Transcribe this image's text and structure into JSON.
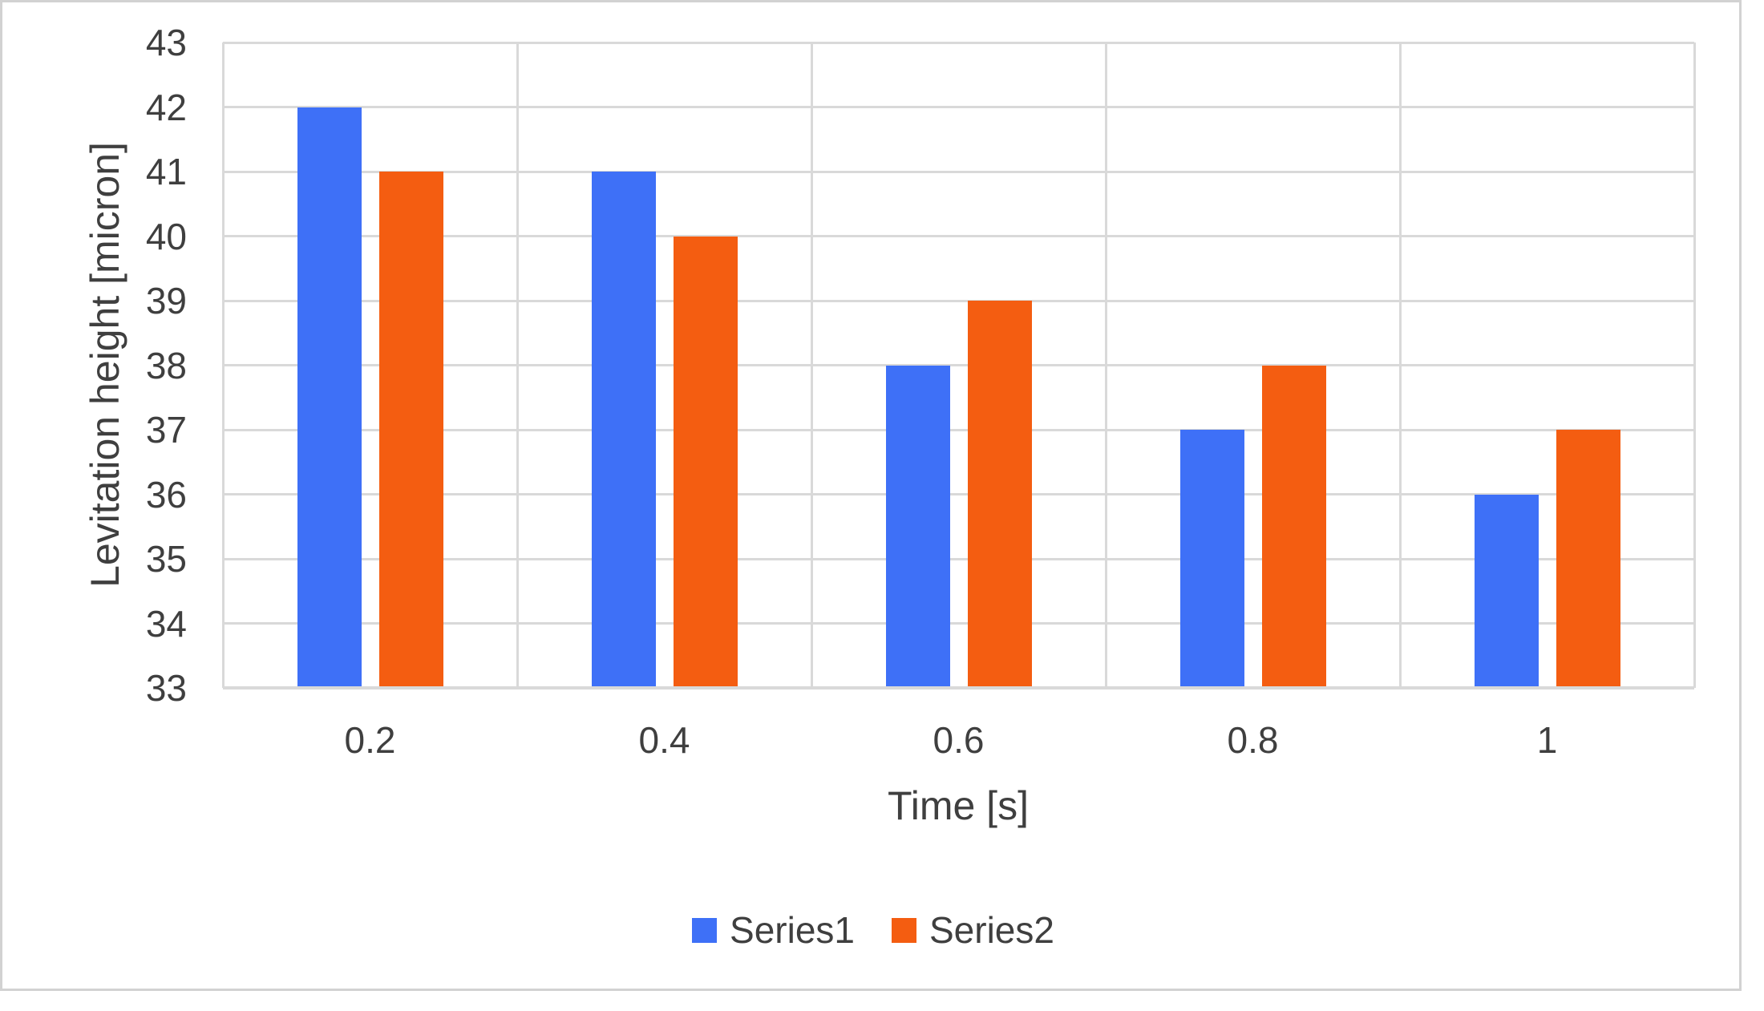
{
  "chart_data": {
    "type": "bar",
    "title": "",
    "categories": [
      "0.2",
      "0.4",
      "0.6",
      "0.8",
      "1"
    ],
    "series": [
      {
        "name": "Series1",
        "color": "#3e70f7",
        "values": [
          42,
          41,
          38,
          37,
          36
        ]
      },
      {
        "name": "Series2",
        "color": "#f45d11",
        "values": [
          41,
          40,
          39,
          38,
          37
        ]
      }
    ],
    "xlabel": "Time [s]",
    "ylabel": "Levitation height [micron]",
    "ylim": [
      33,
      43
    ],
    "yticks": [
      33,
      34,
      35,
      36,
      37,
      38,
      39,
      40,
      41,
      42,
      43
    ],
    "ytick_step": 1,
    "grid": "horizontal-major-and-vertical-category-separators",
    "legend_position": "bottom-center",
    "colors": {
      "gridline": "#d9d9d9",
      "frame_border": "#d2d2d2",
      "axis_text": "#3f3f3f",
      "background": "#ffffff"
    }
  }
}
